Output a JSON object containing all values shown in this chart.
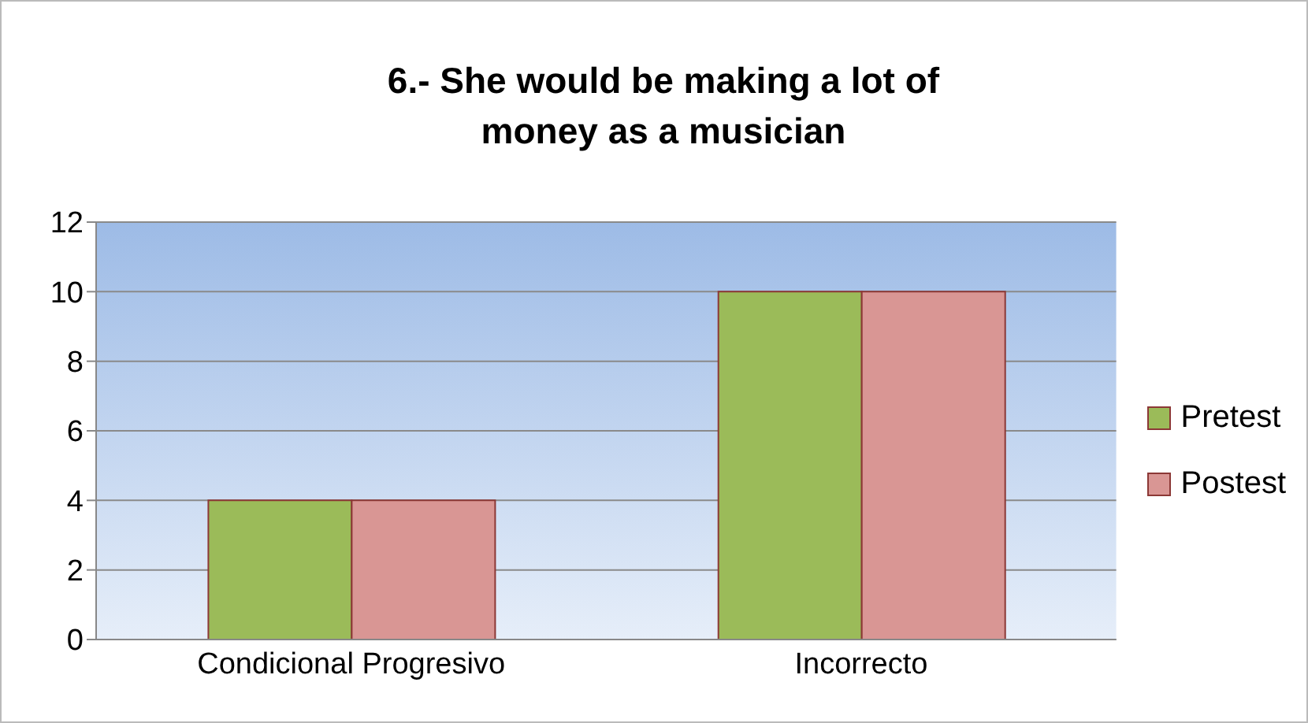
{
  "chart_data": {
    "type": "bar",
    "title": "6.- She would be making a lot of money as a musician",
    "categories": [
      "Condicional Progresivo",
      "Incorrecto"
    ],
    "series": [
      {
        "name": "Pretest",
        "color": "#9bbb59",
        "values": [
          4,
          10
        ]
      },
      {
        "name": "Postest",
        "color": "#d99694",
        "values": [
          4,
          10
        ]
      }
    ],
    "ylim": [
      0,
      12
    ],
    "yticks": [
      0,
      2,
      4,
      6,
      8,
      10,
      12
    ],
    "grid": "y",
    "legend": "right"
  }
}
